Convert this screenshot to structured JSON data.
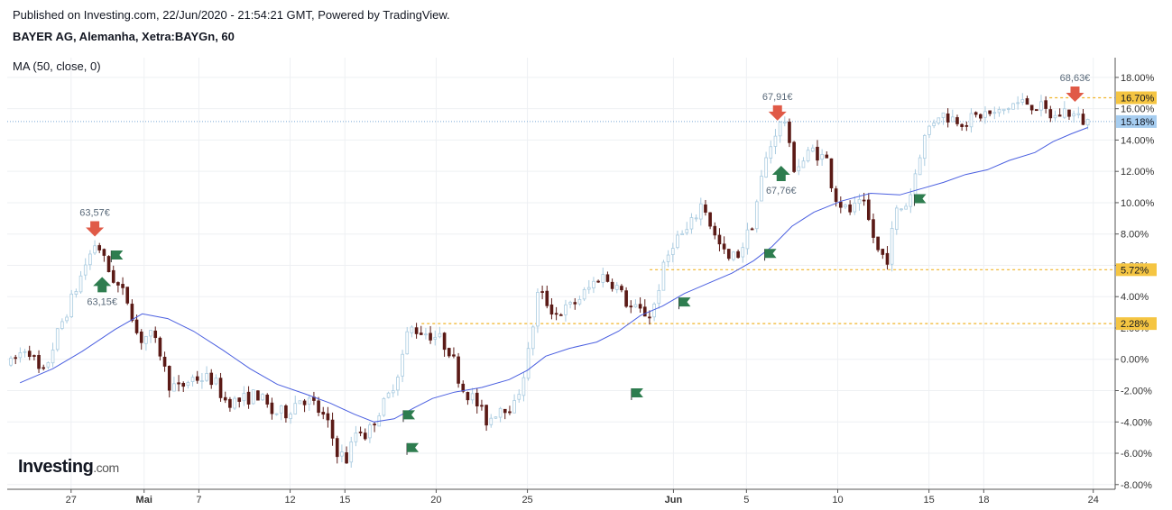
{
  "header": {
    "published": "Published on Investing.com, 22/Jun/2020 - 21:54:21 GMT, Powered by TradingView.",
    "symbol": "BAYER AG, Alemanha, Xetra:BAYGn, 60",
    "indicator": "MA (50, close, 0)"
  },
  "logo": {
    "name": "Investing",
    "suffix": ".com"
  },
  "colors": {
    "up_candle": "#ffffff",
    "up_outline": "#a9cbe0",
    "down_candle": "#5b1a16",
    "ma_line": "#4a5fe0",
    "level_line": "#f0b429",
    "badge_yellow": "#f5c542",
    "badge_blue": "#a6cdf0",
    "arrow_up": "#2e7d4f",
    "arrow_down": "#e05a47",
    "flag": "#2e7d4f"
  },
  "chart_data": {
    "type": "candlestick",
    "y_unit": "%",
    "ylim": [
      -8.3,
      18.8
    ],
    "y_ticks": [
      "18.00%",
      "16.00%",
      "14.00%",
      "12.00%",
      "10.00%",
      "8.00%",
      "6.00%",
      "4.00%",
      "2.00%",
      "0.00%",
      "-2.00%",
      "-4.00%",
      "-6.00%",
      "-8.00%"
    ],
    "y_tick_values": [
      18,
      16,
      14,
      12,
      10,
      8,
      6,
      4,
      2,
      0,
      -2,
      -4,
      -6,
      -8
    ],
    "x_ticks": [
      {
        "label": "27",
        "bold": false,
        "t": 0
      },
      {
        "label": "Mai",
        "bold": true,
        "t": 4
      },
      {
        "label": "7",
        "bold": false,
        "t": 7
      },
      {
        "label": "12",
        "bold": false,
        "t": 12
      },
      {
        "label": "15",
        "bold": false,
        "t": 15
      },
      {
        "label": "20",
        "bold": false,
        "t": 20
      },
      {
        "label": "25",
        "bold": false,
        "t": 25
      },
      {
        "label": "Jun",
        "bold": true,
        "t": 33
      },
      {
        "label": "5",
        "bold": false,
        "t": 37
      },
      {
        "label": "10",
        "bold": false,
        "t": 42
      },
      {
        "label": "15",
        "bold": false,
        "t": 47
      },
      {
        "label": "18",
        "bold": false,
        "t": 50
      },
      {
        "label": "24",
        "bold": false,
        "t": 56
      }
    ],
    "xlim": [
      -3.5,
      57.2
    ],
    "last_close": 15.18,
    "levels": [
      {
        "value": 16.7,
        "label": "16.70%",
        "from_t": 53.6
      },
      {
        "value": 5.72,
        "label": "5.72%",
        "from_t": 31.7
      },
      {
        "value": 2.28,
        "label": "2.28%",
        "from_t": 19.2
      }
    ],
    "current_level": {
      "value": 15.18,
      "label": "15.18%"
    },
    "annotations": [
      {
        "type": "arrow-down",
        "t": 1.3,
        "value": 7.9,
        "label": "63,57€",
        "label_pos": "above"
      },
      {
        "type": "arrow-up",
        "t": 1.7,
        "value": 5.2,
        "label": "63,15€",
        "label_pos": "below"
      },
      {
        "type": "arrow-down",
        "t": 38.7,
        "value": 15.3,
        "label": "67,91€",
        "label_pos": "above"
      },
      {
        "type": "arrow-up",
        "t": 38.9,
        "value": 12.3,
        "label": "67,76€",
        "label_pos": "below"
      },
      {
        "type": "arrow-down",
        "t": 55.0,
        "value": 16.5,
        "label": "68,63€",
        "label_pos": "above"
      }
    ],
    "flags": [
      {
        "t": 2.2,
        "value": 6.6
      },
      {
        "t": 18.2,
        "value": -3.6
      },
      {
        "t": 18.4,
        "value": -5.7
      },
      {
        "t": 30.7,
        "value": -2.2
      },
      {
        "t": 33.3,
        "value": 3.6
      },
      {
        "t": 38.0,
        "value": 6.7
      },
      {
        "t": 46.2,
        "value": 10.2
      }
    ],
    "candles_count": 232,
    "anchors": [
      [
        -3.3,
        -0.3
      ],
      [
        -2.4,
        0.9
      ],
      [
        -1.6,
        -1.2
      ],
      [
        -0.6,
        2.1
      ],
      [
        0.1,
        4.0
      ],
      [
        0.8,
        6.1
      ],
      [
        1.4,
        7.6
      ],
      [
        1.9,
        6.0
      ],
      [
        2.6,
        4.6
      ],
      [
        3.2,
        3.6
      ],
      [
        3.7,
        1.2
      ],
      [
        4.3,
        1.6
      ],
      [
        4.9,
        0.4
      ],
      [
        5.3,
        -1.5
      ],
      [
        5.9,
        -1.9
      ],
      [
        6.6,
        -1.2
      ],
      [
        7.2,
        -1.2
      ],
      [
        7.8,
        -1.3
      ],
      [
        8.4,
        -2.6
      ],
      [
        9.0,
        -2.7
      ],
      [
        9.6,
        -2.5
      ],
      [
        10.2,
        -2.2
      ],
      [
        11.0,
        -3.4
      ],
      [
        11.8,
        -3.4
      ],
      [
        12.6,
        -2.4
      ],
      [
        13.3,
        -2.9
      ],
      [
        14.0,
        -4.0
      ],
      [
        14.6,
        -5.9
      ],
      [
        15.1,
        -6.4
      ],
      [
        15.7,
        -4.3
      ],
      [
        16.2,
        -4.9
      ],
      [
        16.8,
        -3.4
      ],
      [
        17.3,
        -2.6
      ],
      [
        18.0,
        -0.5
      ],
      [
        18.5,
        2.0
      ],
      [
        19.2,
        1.8
      ],
      [
        20.1,
        1.4
      ],
      [
        20.8,
        0.5
      ],
      [
        21.4,
        -1.8
      ],
      [
        22.1,
        -2.6
      ],
      [
        22.8,
        -4.0
      ],
      [
        23.5,
        -3.0
      ],
      [
        24.3,
        -3.0
      ],
      [
        25.0,
        0.0
      ],
      [
        25.6,
        4.4
      ],
      [
        26.5,
        2.9
      ],
      [
        27.3,
        3.3
      ],
      [
        28.2,
        4.3
      ],
      [
        29.0,
        5.4
      ],
      [
        29.8,
        4.8
      ],
      [
        30.6,
        3.3
      ],
      [
        31.3,
        3.0
      ],
      [
        31.8,
        2.8
      ],
      [
        32.4,
        5.6
      ],
      [
        33.0,
        7.6
      ],
      [
        33.8,
        8.2
      ],
      [
        34.6,
        10.1
      ],
      [
        35.3,
        7.7
      ],
      [
        36.0,
        6.3
      ],
      [
        36.6,
        6.8
      ],
      [
        37.3,
        8.6
      ],
      [
        38.0,
        12.5
      ],
      [
        38.6,
        14.6
      ],
      [
        39.1,
        15.3
      ],
      [
        39.5,
        12.3
      ],
      [
        40.0,
        12.5
      ],
      [
        40.6,
        13.4
      ],
      [
        41.4,
        12.7
      ],
      [
        41.8,
        10.5
      ],
      [
        42.5,
        9.4
      ],
      [
        43.4,
        9.9
      ],
      [
        44.2,
        6.9
      ],
      [
        44.7,
        6.4
      ],
      [
        45.2,
        9.4
      ],
      [
        45.9,
        10.1
      ],
      [
        46.6,
        13.7
      ],
      [
        47.0,
        14.8
      ],
      [
        47.5,
        15.7
      ],
      [
        48.3,
        15.4
      ],
      [
        49.1,
        15.2
      ],
      [
        50.0,
        15.7
      ],
      [
        50.7,
        15.6
      ],
      [
        51.6,
        16.3
      ],
      [
        52.4,
        16.4
      ],
      [
        53.2,
        16.0
      ],
      [
        53.8,
        15.4
      ],
      [
        54.5,
        15.9
      ],
      [
        55.3,
        15.3
      ],
      [
        55.7,
        15.18
      ]
    ],
    "ma_points": [
      [
        -2.8,
        -1.5
      ],
      [
        -1.0,
        -0.6
      ],
      [
        0.6,
        0.5
      ],
      [
        2.4,
        1.9
      ],
      [
        3.9,
        2.9
      ],
      [
        5.3,
        2.6
      ],
      [
        6.7,
        1.8
      ],
      [
        8.3,
        0.6
      ],
      [
        9.8,
        -0.6
      ],
      [
        11.3,
        -1.6
      ],
      [
        12.8,
        -2.2
      ],
      [
        14.2,
        -2.8
      ],
      [
        15.5,
        -3.5
      ],
      [
        16.6,
        -4.0
      ],
      [
        17.7,
        -3.8
      ],
      [
        18.8,
        -3.1
      ],
      [
        19.8,
        -2.5
      ],
      [
        21.0,
        -2.1
      ],
      [
        22.5,
        -1.8
      ],
      [
        24.0,
        -1.3
      ],
      [
        25.0,
        -0.7
      ],
      [
        26.0,
        0.2
      ],
      [
        27.3,
        0.7
      ],
      [
        28.8,
        1.1
      ],
      [
        30.0,
        1.8
      ],
      [
        31.2,
        2.8
      ],
      [
        32.4,
        3.4
      ],
      [
        33.6,
        4.2
      ],
      [
        35.0,
        4.9
      ],
      [
        36.2,
        5.5
      ],
      [
        37.4,
        6.3
      ],
      [
        38.4,
        7.2
      ],
      [
        39.5,
        8.5
      ],
      [
        40.7,
        9.4
      ],
      [
        42.2,
        10.1
      ],
      [
        43.8,
        10.6
      ],
      [
        45.4,
        10.5
      ],
      [
        46.6,
        10.9
      ],
      [
        47.8,
        11.3
      ],
      [
        49.0,
        11.8
      ],
      [
        50.2,
        12.1
      ],
      [
        51.4,
        12.7
      ],
      [
        52.8,
        13.2
      ],
      [
        53.8,
        13.9
      ],
      [
        54.8,
        14.4
      ],
      [
        55.7,
        14.8
      ]
    ]
  }
}
